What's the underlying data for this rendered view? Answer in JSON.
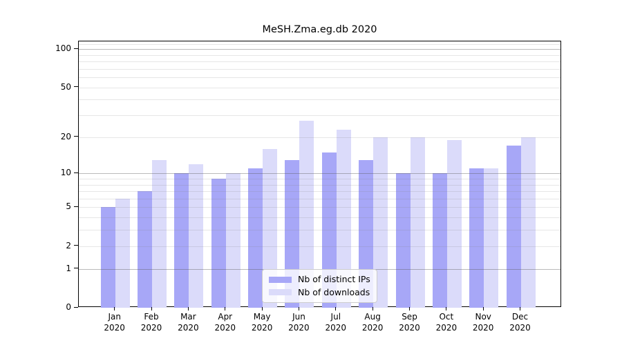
{
  "chart_data": {
    "type": "bar",
    "title": "MeSH.Zma.eg.db 2020",
    "months": [
      "Jan",
      "Feb",
      "Mar",
      "Apr",
      "May",
      "Jun",
      "Jul",
      "Aug",
      "Sep",
      "Oct",
      "Nov",
      "Dec"
    ],
    "year": "2020",
    "series": [
      {
        "name": "Nb of distinct IPs",
        "key": "distinct-ips",
        "color": "#a7a7f7",
        "values": [
          5,
          7,
          10,
          9,
          11,
          13,
          15,
          13,
          10,
          10,
          11,
          17
        ]
      },
      {
        "name": "Nb of downloads",
        "key": "downloads",
        "color": "#dbdbfa",
        "values": [
          6,
          13,
          12,
          10,
          16,
          27,
          23,
          20,
          20,
          19,
          11,
          20
        ]
      }
    ],
    "y_scale": "log10(1+x)",
    "ylim": [
      0,
      115
    ],
    "y_ticks": [
      0,
      1,
      2,
      5,
      10,
      20,
      50,
      100
    ],
    "grid_major_values": [
      1,
      10,
      100
    ],
    "grid_minor_values": [
      2,
      3,
      4,
      5,
      6,
      7,
      8,
      9,
      20,
      30,
      40,
      50,
      60,
      70,
      80,
      90,
      110
    ],
    "grid": "on",
    "legend_position": "lower center"
  },
  "colors": {
    "background": "#ffffff",
    "axis": "#000000",
    "grid_major": "rgba(90,90,90,0.42)",
    "grid_minor": "rgba(130,130,130,0.2)",
    "bar_distinct_ips": "#a7a7f7",
    "bar_downloads": "#dbdbfa",
    "legend_border": "#cccccc"
  }
}
